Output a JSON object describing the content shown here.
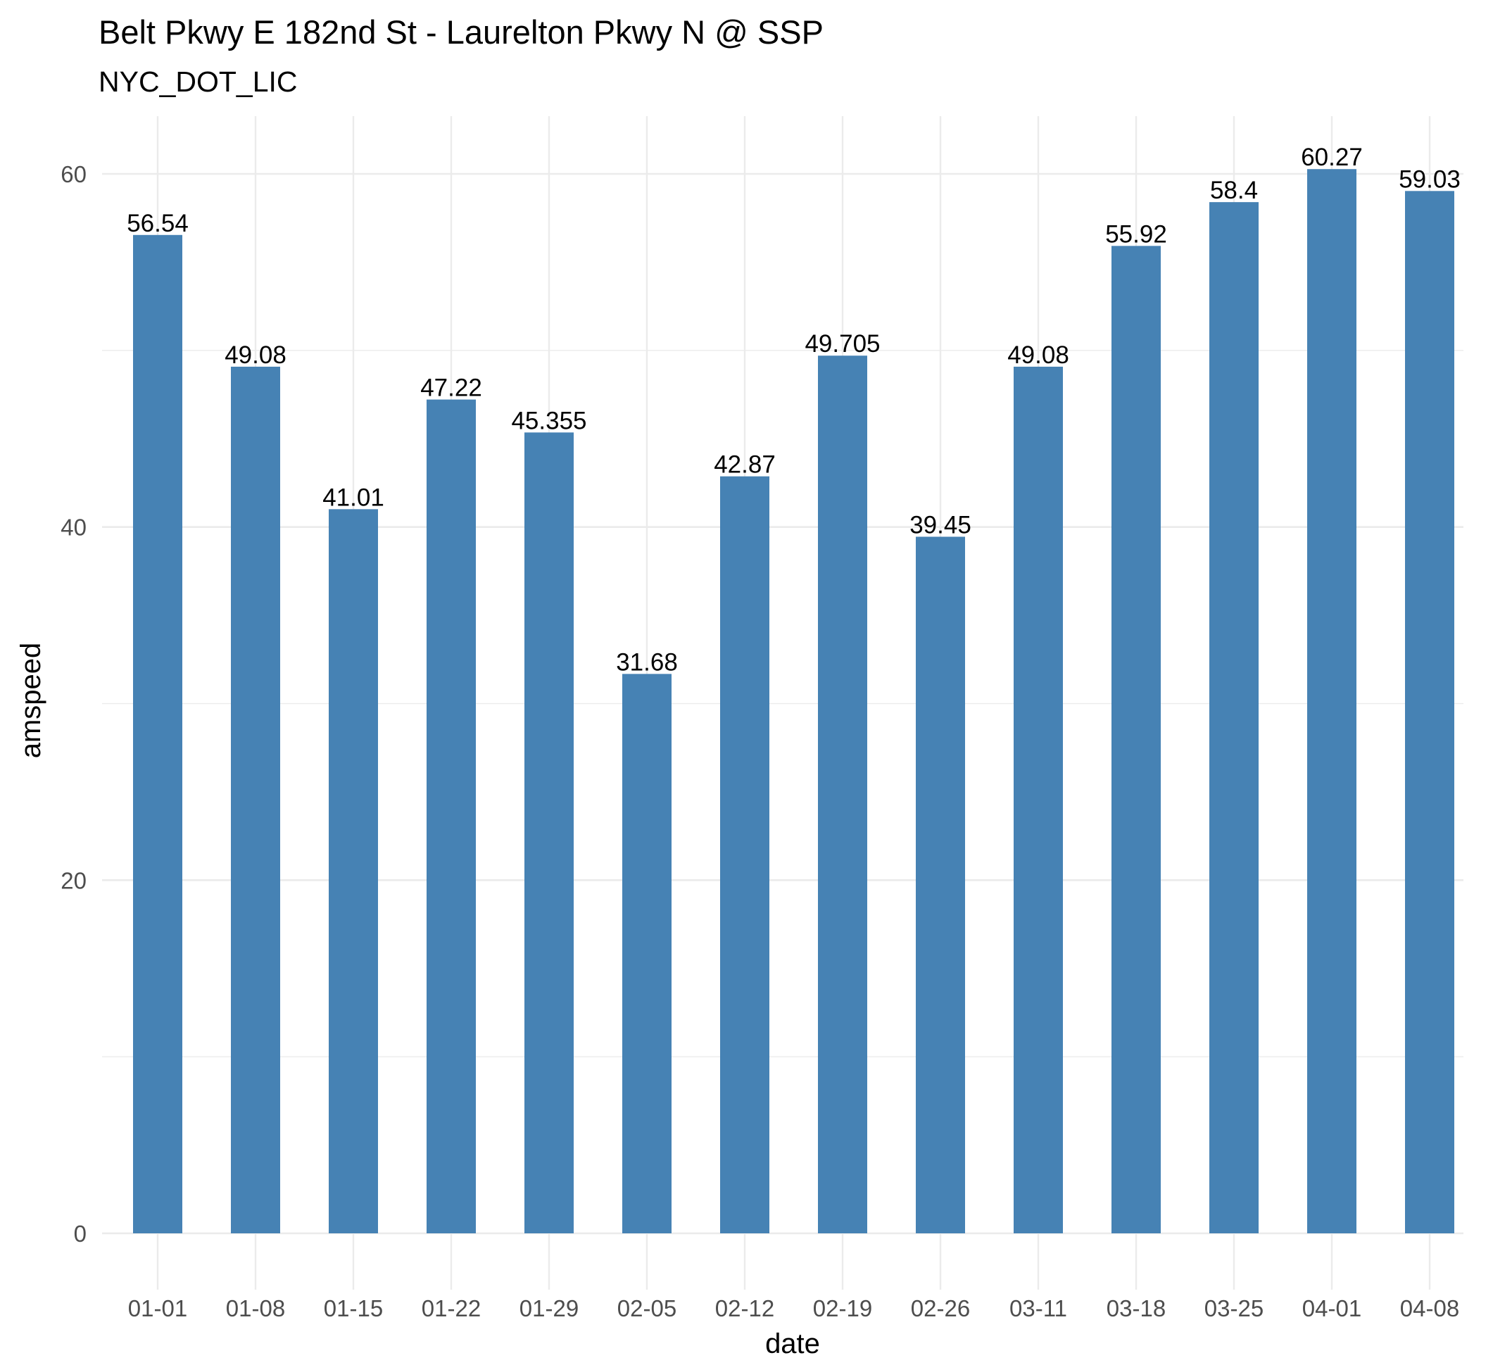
{
  "chart_data": {
    "type": "bar",
    "title": "Belt Pkwy E 182nd St - Laurelton Pkwy N @ SSP",
    "subtitle": "NYC_DOT_LIC",
    "xlabel": "date",
    "ylabel": "amspeed",
    "categories": [
      "01-01",
      "01-08",
      "01-15",
      "01-22",
      "01-29",
      "02-05",
      "02-12",
      "02-19",
      "02-26",
      "03-11",
      "03-18",
      "03-25",
      "04-01",
      "04-08"
    ],
    "values": [
      56.54,
      49.08,
      41.01,
      47.22,
      45.355,
      31.68,
      42.87,
      49.705,
      39.45,
      49.08,
      55.92,
      58.4,
      60.27,
      59.03
    ],
    "data_labels": [
      "56.54",
      "49.08",
      "41.01",
      "47.22",
      "45.355",
      "31.68",
      "42.87",
      "49.705",
      "39.45",
      "49.08",
      "55.92",
      "58.4",
      "60.27",
      "59.03"
    ],
    "ylim": [
      0,
      60
    ],
    "y_ticks": [
      0,
      20,
      40,
      60
    ],
    "y_tick_labels": [
      "0",
      "20",
      "40",
      "60"
    ],
    "grid": true,
    "legend": "none",
    "colors": {
      "bar": "#4682B4",
      "grid": "#ebebeb",
      "tick_text": "#4d4d4d",
      "text": "#000000"
    }
  }
}
